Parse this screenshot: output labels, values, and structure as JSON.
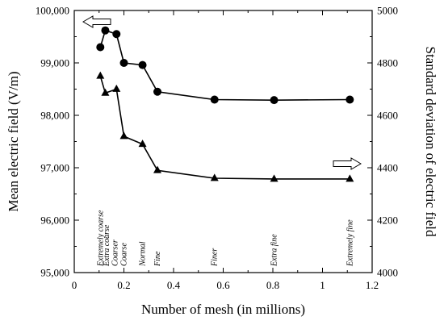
{
  "chart_data": {
    "type": "line",
    "xlabel": "Number of mesh (in millions)",
    "ylabel_left": "Mean electric field (V/m)",
    "ylabel_right": "Standard deviation of electric field",
    "xlim": [
      0,
      1.2
    ],
    "ylim_left": [
      95000,
      100000
    ],
    "ylim_right": [
      4000,
      5000
    ],
    "x_ticks": [
      "0",
      "0.2",
      "0.4",
      "0.6",
      "0.8",
      "1",
      "1.2"
    ],
    "y_left_ticks": [
      "95,000",
      "96,000",
      "97,000",
      "98,000",
      "99,000",
      "100,000"
    ],
    "y_right_ticks": [
      "4000",
      "4200",
      "4400",
      "4600",
      "4800",
      "5000"
    ],
    "legend": "none",
    "grid": false,
    "series": [
      {
        "marker": "circle",
        "axis": "left",
        "x": [
          0.105,
          0.125,
          0.17,
          0.2,
          0.275,
          0.335,
          0.565,
          0.805,
          1.11
        ],
        "y": [
          99300,
          99620,
          99550,
          99000,
          98960,
          98450,
          98300,
          98290,
          98300
        ]
      },
      {
        "marker": "triangle",
        "axis": "right",
        "x": [
          0.105,
          0.125,
          0.17,
          0.2,
          0.275,
          0.335,
          0.565,
          0.805,
          1.11
        ],
        "y": [
          4750,
          4685,
          4700,
          4520,
          4490,
          4390,
          4360,
          4357,
          4357
        ]
      }
    ],
    "annotations": [
      {
        "text": "Extremely coarse",
        "x": 0.105
      },
      {
        "text": "Extra coarse",
        "x": 0.13
      },
      {
        "text": "Coarser",
        "x": 0.165
      },
      {
        "text": "Coarse",
        "x": 0.2
      },
      {
        "text": "Normal",
        "x": 0.275
      },
      {
        "text": "Fine",
        "x": 0.335
      },
      {
        "text": "Finer",
        "x": 0.565
      },
      {
        "text": "Extra fine",
        "x": 0.805
      },
      {
        "text": "Extremely fine",
        "x": 1.11
      }
    ],
    "arrows": [
      {
        "direction": "left",
        "axis": "left"
      },
      {
        "direction": "right",
        "axis": "right"
      }
    ]
  }
}
